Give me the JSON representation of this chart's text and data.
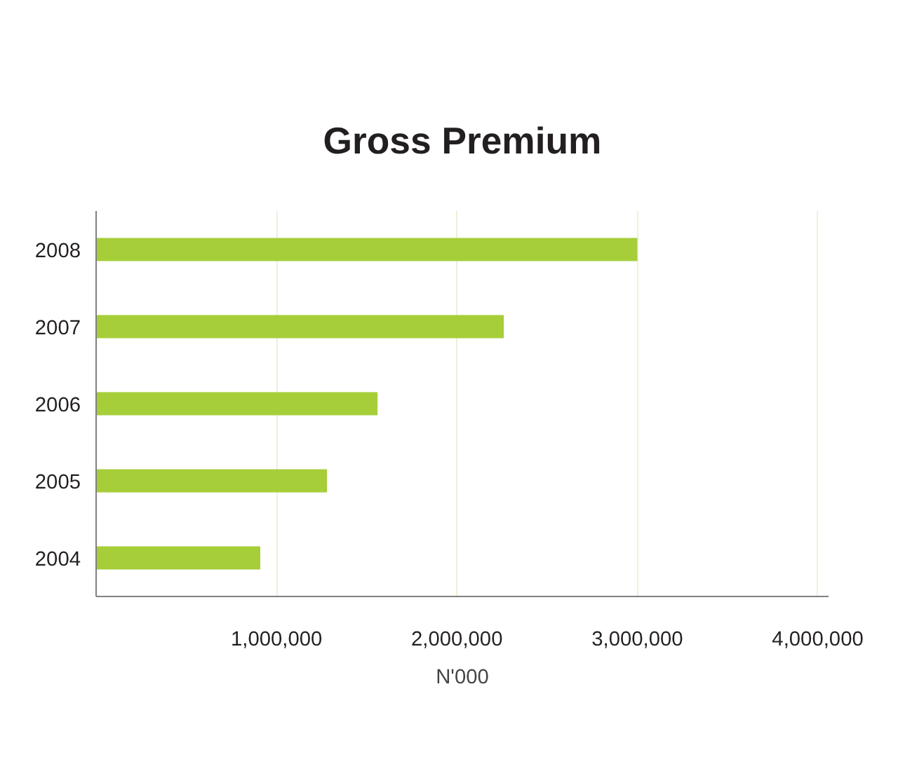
{
  "chart_data": {
    "type": "bar",
    "orientation": "horizontal",
    "title": "Gross Premium",
    "xlabel": "N'000",
    "categories": [
      "2008",
      "2007",
      "2006",
      "2005",
      "2004"
    ],
    "values": [
      3000000,
      2260000,
      1560000,
      1280000,
      910000
    ],
    "color": "#a6ce39",
    "xlim": [
      0,
      4060000
    ],
    "xticks": [
      {
        "value": 1000000,
        "label": "1,000,000"
      },
      {
        "value": 2000000,
        "label": "2,000,000"
      },
      {
        "value": 3000000,
        "label": "3,000,000"
      },
      {
        "value": 4000000,
        "label": "4,000,000"
      }
    ],
    "grid": "x"
  }
}
